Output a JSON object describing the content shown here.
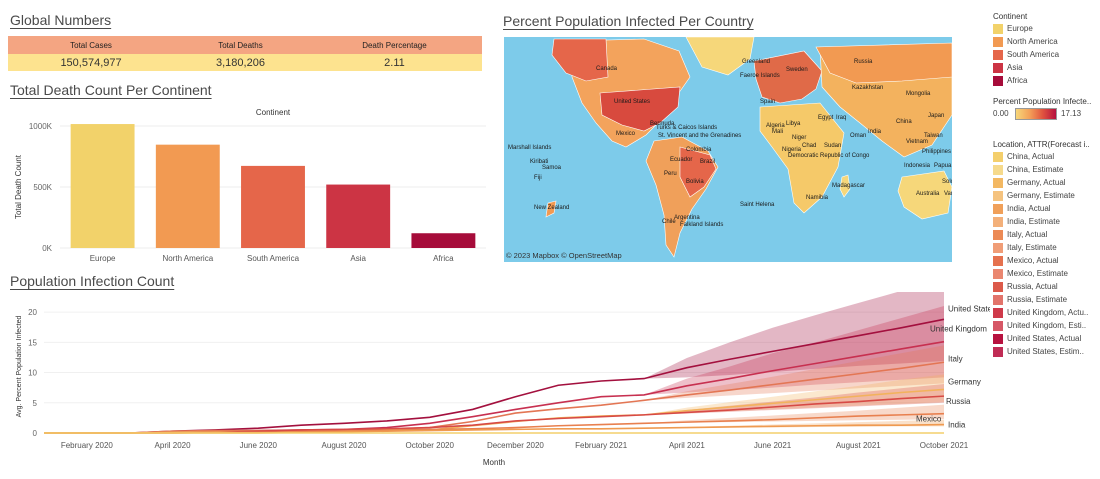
{
  "global": {
    "title": "Global Numbers",
    "headers": [
      "Total Cases",
      "Total Deaths",
      "Death Percentage"
    ],
    "values": [
      "150,574,977",
      "3,180,206",
      "2.11"
    ]
  },
  "death_section": {
    "title": "Total Death Count Per Continent"
  },
  "map": {
    "title": "Percent Population Infected Per Country",
    "attribution": "© 2023 Mapbox © OpenStreetMap",
    "labels": [
      "Canada",
      "United States",
      "Mexico",
      "Bermuda",
      "Turks & Caicos Islands",
      "St. Vincent and the Grenadines",
      "Colombia",
      "Brazil",
      "Ecuador",
      "Bolivia",
      "Peru",
      "Argentina",
      "Chile",
      "Marshall Islands",
      "Kiribati",
      "Samoa",
      "Fiji",
      "New Zealand",
      "Falkland Islands",
      "Saint Helena",
      "Greenland",
      "Faeroe Islands",
      "Sweden",
      "Russia",
      "Kazakhstan",
      "Mongolia",
      "China",
      "India",
      "Libya",
      "Egypt",
      "Niger",
      "Nigeria",
      "Democratic Republic of Congo",
      "Chad",
      "Sudan",
      "Namibia",
      "Madagascar",
      "Algeria",
      "Japan",
      "Taiwan",
      "Vietnam",
      "Philippines",
      "Indonesia",
      "Australia",
      "Papua New Guinea",
      "Solomon Islands",
      "Vanuatu",
      "Oman",
      "Iraq",
      "Spain",
      "Mali"
    ]
  },
  "legend": {
    "continent_title": "Continent",
    "continents": [
      {
        "name": "Europe",
        "color": "#f2d26a"
      },
      {
        "name": "North America",
        "color": "#f29a52"
      },
      {
        "name": "South America",
        "color": "#e5664a"
      },
      {
        "name": "Asia",
        "color": "#cc3444"
      },
      {
        "name": "Africa",
        "color": "#a60c3a"
      }
    ],
    "percent_title": "Percent Population Infecte..",
    "percent_min": "0.00",
    "percent_max": "17.13",
    "location_title": "Location, ATTR(Forecast i..",
    "locations": [
      {
        "name": "China, Actual",
        "color": "#f4cf6c"
      },
      {
        "name": "China, Estimate",
        "color": "#f6da8c"
      },
      {
        "name": "Germany, Actual",
        "color": "#f3b862"
      },
      {
        "name": "Germany, Estimate",
        "color": "#f5c37f"
      },
      {
        "name": "India, Actual",
        "color": "#f0a05a"
      },
      {
        "name": "India, Estimate",
        "color": "#f3b07a"
      },
      {
        "name": "Italy, Actual",
        "color": "#ec8a55"
      },
      {
        "name": "Italy, Estimate",
        "color": "#f09d77"
      },
      {
        "name": "Mexico, Actual",
        "color": "#e5714e"
      },
      {
        "name": "Mexico, Estimate",
        "color": "#ea8770"
      },
      {
        "name": "Russia, Actual",
        "color": "#dc5a4a"
      },
      {
        "name": "Russia, Estimate",
        "color": "#e2746b"
      },
      {
        "name": "United Kingdom, Actu..",
        "color": "#cf3a4a"
      },
      {
        "name": "United Kingdom, Esti..",
        "color": "#d65766"
      },
      {
        "name": "United States, Actual",
        "color": "#b7123f"
      },
      {
        "name": "United States, Estim..",
        "color": "#c02c55"
      }
    ]
  },
  "infection_section": {
    "title": "Population Infection Count"
  },
  "chart_data": [
    {
      "type": "bar",
      "title": "Total Death Count Per Continent",
      "header": "Continent",
      "categories": [
        "Europe",
        "North America",
        "South America",
        "Asia",
        "Africa"
      ],
      "values": [
        1016000,
        847000,
        673000,
        520000,
        121000
      ],
      "colors": [
        "#f2d26a",
        "#f29a52",
        "#e5664a",
        "#cc3444",
        "#a60c3a"
      ],
      "xlabel": "",
      "ylabel": "Total Death Count",
      "ylim": [
        0,
        1000000
      ],
      "yticks": [
        0,
        500000,
        1000000
      ],
      "ytick_labels": [
        "0K",
        "500K",
        "1000K"
      ]
    },
    {
      "type": "line",
      "title": "Population Infection Count",
      "xlabel": "Month",
      "ylabel": "Avg. Percent Population Infected",
      "x": [
        "Jan 2020",
        "Feb 2020",
        "Mar 2020",
        "Apr 2020",
        "May 2020",
        "Jun 2020",
        "Jul 2020",
        "Aug 2020",
        "Sep 2020",
        "Oct 2020",
        "Nov 2020",
        "Dec 2020",
        "Jan 2021",
        "Feb 2021",
        "Mar 2021",
        "Apr 2021",
        "May 2021",
        "Jun 2021",
        "Jul 2021",
        "Aug 2021",
        "Sep 2021",
        "Oct 2021"
      ],
      "xtick_labels": [
        "February 2020",
        "April 2020",
        "June 2020",
        "August 2020",
        "October 2020",
        "December 2020",
        "February 2021",
        "April 2021",
        "June 2021",
        "August 2021",
        "October 2021"
      ],
      "xtick_index": [
        1,
        3,
        5,
        7,
        9,
        11,
        13,
        15,
        17,
        19,
        21
      ],
      "ylim": [
        0,
        22
      ],
      "yticks": [
        0,
        5,
        10,
        15,
        20
      ],
      "forecast_start_index": 14,
      "series": [
        {
          "name": "United States",
          "color": "#a3103e",
          "values": [
            0,
            0,
            0,
            0.3,
            0.5,
            0.8,
            1.3,
            1.6,
            2.0,
            2.6,
            3.9,
            6.0,
            7.9,
            8.6,
            9.0,
            10.8,
            12.2,
            13.5,
            14.8,
            16.1,
            17.4,
            18.8
          ],
          "band": [
            [
              9.0,
              9.0
            ],
            [
              9.2,
              12.4
            ],
            [
              9.6,
              15.0
            ],
            [
              10.1,
              17.4
            ],
            [
              10.6,
              19.5
            ],
            [
              11.1,
              21.5
            ],
            [
              11.5,
              23.5
            ],
            [
              11.9,
              25.4
            ]
          ]
        },
        {
          "name": "United Kingdom",
          "color": "#c73050",
          "values": [
            0,
            0,
            0,
            0.2,
            0.3,
            0.4,
            0.5,
            0.6,
            0.9,
            1.6,
            2.7,
            3.9,
            5.0,
            6.0,
            6.3,
            7.8,
            9.0,
            10.3,
            11.5,
            12.7,
            13.9,
            15.1
          ],
          "band": [
            [
              6.3,
              6.3
            ],
            [
              6.7,
              9.0
            ],
            [
              7.1,
              11.0
            ],
            [
              7.5,
              13.2
            ],
            [
              8.0,
              15.0
            ],
            [
              8.4,
              17.0
            ],
            [
              8.8,
              19.0
            ],
            [
              9.2,
              21.0
            ]
          ]
        },
        {
          "name": "Italy",
          "color": "#e37654",
          "values": [
            0,
            0,
            0,
            0.3,
            0.4,
            0.4,
            0.4,
            0.5,
            0.6,
            0.9,
            1.9,
            3.3,
            4.0,
            4.6,
            5.4,
            6.3,
            7.1,
            8.0,
            8.9,
            9.8,
            10.7,
            11.7
          ],
          "band": [
            [
              5.4,
              5.4
            ],
            [
              5.8,
              6.9
            ],
            [
              6.2,
              8.1
            ],
            [
              6.6,
              9.3
            ],
            [
              7.0,
              10.6
            ],
            [
              7.4,
              11.9
            ],
            [
              7.8,
              13.2
            ],
            [
              8.2,
              14.5
            ]
          ]
        },
        {
          "name": "Germany",
          "color": "#f2b25c",
          "values": [
            0,
            0,
            0,
            0.1,
            0.2,
            0.2,
            0.2,
            0.3,
            0.4,
            0.5,
            1.2,
            1.9,
            2.5,
            2.8,
            3.0,
            3.7,
            4.3,
            4.9,
            5.5,
            6.1,
            6.7,
            7.2
          ],
          "band": [
            [
              3.0,
              3.0
            ],
            [
              3.3,
              4.2
            ],
            [
              3.6,
              5.1
            ],
            [
              3.9,
              6.0
            ],
            [
              4.2,
              6.9
            ],
            [
              4.5,
              7.8
            ],
            [
              4.8,
              8.8
            ],
            [
              5.1,
              9.7
            ]
          ]
        },
        {
          "name": "Russia",
          "color": "#d74a45",
          "values": [
            0,
            0,
            0,
            0,
            0.1,
            0.3,
            0.5,
            0.6,
            0.7,
            0.9,
            1.3,
            2.0,
            2.4,
            2.7,
            3.0,
            3.4,
            3.8,
            4.3,
            4.8,
            5.2,
            5.7,
            6.1
          ],
          "band": [
            [
              3.0,
              3.0
            ],
            [
              3.2,
              3.8
            ],
            [
              3.5,
              4.5
            ],
            [
              3.8,
              5.2
            ],
            [
              4.1,
              5.9
            ],
            [
              4.4,
              6.7
            ],
            [
              4.7,
              7.4
            ],
            [
              5.0,
              8.1
            ]
          ]
        },
        {
          "name": "Mexico",
          "color": "#e8804f",
          "values": [
            0,
            0,
            0,
            0,
            0.1,
            0.1,
            0.2,
            0.3,
            0.5,
            0.6,
            0.7,
            0.9,
            1.2,
            1.4,
            1.6,
            1.8,
            2.0,
            2.2,
            2.5,
            2.8,
            3.0,
            3.2
          ],
          "band": [
            [
              1.6,
              1.6
            ],
            [
              1.7,
              2.1
            ],
            [
              1.8,
              2.5
            ],
            [
              1.9,
              2.9
            ],
            [
              2.0,
              3.3
            ],
            [
              2.1,
              3.7
            ],
            [
              2.2,
              4.2
            ],
            [
              2.3,
              4.7
            ]
          ]
        },
        {
          "name": "India",
          "color": "#ef9a50",
          "values": [
            0,
            0,
            0,
            0,
            0,
            0,
            0.1,
            0.2,
            0.3,
            0.4,
            0.5,
            0.6,
            0.7,
            0.7,
            0.8,
            0.9,
            1.0,
            1.1,
            1.2,
            1.3,
            1.3,
            1.4
          ],
          "band": [
            [
              0.8,
              0.8
            ],
            [
              0.8,
              1.0
            ],
            [
              0.9,
              1.2
            ],
            [
              0.9,
              1.4
            ],
            [
              1.0,
              1.6
            ],
            [
              1.0,
              1.8
            ],
            [
              1.1,
              2.0
            ],
            [
              1.1,
              2.2
            ]
          ]
        },
        {
          "name": "China",
          "color": "#f4cf6c",
          "values": [
            0,
            0,
            0,
            0,
            0,
            0,
            0,
            0,
            0,
            0,
            0,
            0,
            0,
            0,
            0,
            0,
            0,
            0,
            0,
            0,
            0,
            0
          ]
        }
      ],
      "labels": [
        {
          "text": "United States",
          "series": "United States",
          "dx": 4,
          "dy": -8
        },
        {
          "text": "United Kingdom",
          "series": "United Kingdom",
          "dx": -14,
          "dy": -10
        },
        {
          "text": "Italy",
          "series": "Italy",
          "dx": 4,
          "dy": -1
        },
        {
          "text": "Germany",
          "series": "Germany",
          "dx": 4,
          "dy": -5
        },
        {
          "text": "Russia",
          "series": "Russia",
          "dx": 2,
          "dy": 8
        },
        {
          "text": "Mexico",
          "series": "Mexico",
          "dx": -28,
          "dy": 8
        },
        {
          "text": "India",
          "series": "India",
          "dx": 4,
          "dy": 3
        }
      ]
    }
  ]
}
